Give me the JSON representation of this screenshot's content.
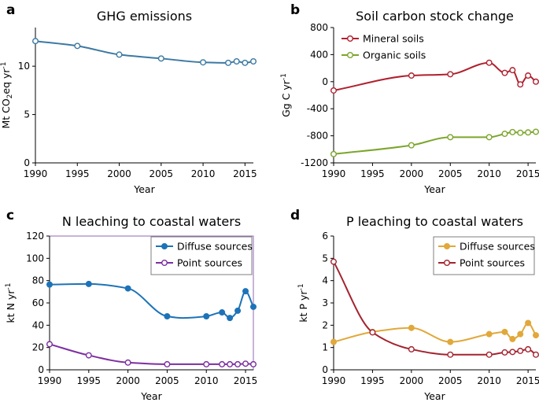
{
  "chart_data": [
    {
      "panel": "a",
      "type": "line",
      "title": "GHG emissions",
      "xlabel": "Year",
      "ylabel": {
        "pre": "Mt CO",
        "sub": "2",
        "post": "eq yr",
        "sup": "-1"
      },
      "xlim": [
        1990,
        2016
      ],
      "ylim": [
        0,
        14
      ],
      "xticks": [
        1990,
        1995,
        2000,
        2005,
        2010,
        2015
      ],
      "yticks": [
        0,
        5,
        10
      ],
      "legend": null,
      "series": [
        {
          "name": "GHG emissions",
          "color": "#3c79a3",
          "marker": "open",
          "x": [
            1990,
            1995,
            2000,
            2005,
            2010,
            2013,
            2014,
            2015,
            2016
          ],
          "y": [
            12.6,
            12.1,
            11.2,
            10.8,
            10.4,
            10.35,
            10.5,
            10.35,
            10.5
          ],
          "markers": [
            1990,
            1995,
            2000,
            2005,
            2010,
            2013,
            2014,
            2015,
            2016
          ]
        }
      ]
    },
    {
      "panel": "b",
      "type": "line",
      "title": "Soil carbon stock change",
      "xlabel": "Year",
      "ylabel": {
        "pre": "Gg C yr",
        "sup": "-1"
      },
      "xlim": [
        1990,
        2016
      ],
      "ylim": [
        -1200,
        800
      ],
      "xticks": [
        1990,
        1995,
        2000,
        2005,
        2010,
        2015
      ],
      "yticks": [
        -1200,
        -800,
        -400,
        0,
        400,
        800
      ],
      "legend": "top-left",
      "series": [
        {
          "name": "Mineral soils",
          "color": "#b0202e",
          "marker": "open",
          "x": [
            1990,
            2000,
            2005,
            2010,
            2012,
            2013,
            2014,
            2015,
            2016
          ],
          "y": [
            -130,
            90,
            110,
            280,
            130,
            170,
            -40,
            90,
            0
          ],
          "markers": [
            1990,
            2000,
            2005,
            2010,
            2012,
            2013,
            2014,
            2015,
            2016
          ]
        },
        {
          "name": "Organic soils",
          "color": "#7ca52c",
          "marker": "open",
          "x": [
            1990,
            2000,
            2005,
            2010,
            2012,
            2013,
            2014,
            2015,
            2016
          ],
          "y": [
            -1070,
            -940,
            -820,
            -820,
            -770,
            -745,
            -755,
            -750,
            -740
          ],
          "markers": [
            1990,
            2000,
            2005,
            2010,
            2012,
            2013,
            2014,
            2015,
            2016
          ]
        }
      ]
    },
    {
      "panel": "c",
      "type": "line",
      "title": "N leaching to coastal waters",
      "xlabel": "Year",
      "ylabel": {
        "pre": "kt N yr",
        "sup": "-1"
      },
      "xlim": [
        1990,
        2016
      ],
      "ylim": [
        0,
        120
      ],
      "xticks": [
        1990,
        1995,
        2000,
        2005,
        2010,
        2015
      ],
      "yticks": [
        0,
        20,
        40,
        60,
        80,
        100,
        120
      ],
      "legend": "top-right",
      "box": "#9067b4",
      "series": [
        {
          "name": "Diffuse sources",
          "color": "#1d73b8",
          "marker": "filled",
          "x": [
            1990,
            1995,
            2000,
            2005,
            2007,
            2010,
            2012,
            2013,
            2014,
            2015,
            2016
          ],
          "y": [
            76.5,
            77,
            73,
            48,
            46.5,
            48,
            51.5,
            46.5,
            53,
            70.5,
            56.5
          ],
          "markers": [
            1990,
            1995,
            2000,
            2005,
            2010,
            2012,
            2013,
            2014,
            2015,
            2016
          ]
        },
        {
          "name": "Point sources",
          "color": "#7d2fa0",
          "marker": "open",
          "x": [
            1990,
            1995,
            2000,
            2005,
            2010,
            2012,
            2013,
            2014,
            2015,
            2016
          ],
          "y": [
            23,
            13,
            6.5,
            5,
            5,
            5,
            5,
            5,
            5.5,
            5
          ],
          "markers": [
            1990,
            1995,
            2000,
            2005,
            2010,
            2012,
            2013,
            2014,
            2015,
            2016
          ]
        }
      ]
    },
    {
      "panel": "d",
      "type": "line",
      "title": "P leaching to coastal waters",
      "xlabel": "Year",
      "ylabel": {
        "pre": "kt P yr",
        "sup": "-1"
      },
      "xlim": [
        1990,
        2016
      ],
      "ylim": [
        0,
        6
      ],
      "xticks": [
        1990,
        1995,
        2000,
        2005,
        2010,
        2015
      ],
      "yticks": [
        0,
        1,
        2,
        3,
        4,
        5,
        6
      ],
      "legend": "top-right",
      "series": [
        {
          "name": "Diffuse sources",
          "color": "#e1a83a",
          "marker": "filled",
          "x": [
            1990,
            1995,
            2000,
            2005,
            2010,
            2012,
            2013,
            2014,
            2015,
            2016
          ],
          "y": [
            1.25,
            1.7,
            1.88,
            1.25,
            1.6,
            1.7,
            1.38,
            1.6,
            2.1,
            1.55
          ],
          "markers": [
            1990,
            1995,
            2000,
            2005,
            2010,
            2012,
            2013,
            2014,
            2015,
            2016
          ]
        },
        {
          "name": "Point sources",
          "color": "#a3232f",
          "marker": "open",
          "x": [
            1990,
            1995,
            2000,
            2005,
            2010,
            2012,
            2013,
            2014,
            2015,
            2016
          ],
          "y": [
            4.85,
            1.68,
            0.92,
            0.68,
            0.68,
            0.78,
            0.8,
            0.85,
            0.92,
            0.68
          ],
          "markers": [
            1990,
            1995,
            2000,
            2005,
            2010,
            2012,
            2013,
            2014,
            2015,
            2016
          ]
        }
      ]
    }
  ]
}
